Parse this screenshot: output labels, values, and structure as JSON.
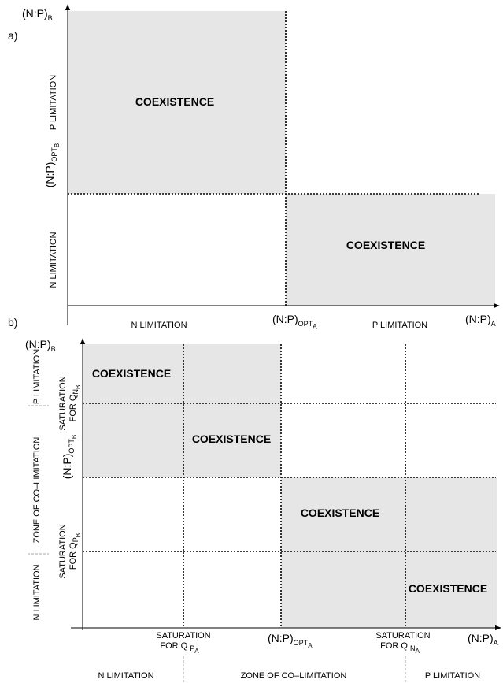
{
  "panel_a": {
    "label": "a)",
    "y_axis": {
      "main": "(N:P)",
      "sub": "B"
    },
    "y_threshold": {
      "main": "(N:P)",
      "sub": "OPT",
      "subsub": "B"
    },
    "y_regions": [
      "P LIMITATION",
      "N LIMITATION"
    ],
    "x_axis": {
      "main": "(N:P)",
      "sub": "A"
    },
    "x_threshold": {
      "main": "(N:P)",
      "sub": "OPT",
      "subsub": "A"
    },
    "x_regions": [
      "N LIMITATION",
      "P LIMITATION"
    ],
    "regions": [
      "COEXISTENCE",
      "COEXISTENCE"
    ]
  },
  "panel_b": {
    "label": "b)",
    "y_axis": {
      "main": "(N:P)",
      "sub": "B"
    },
    "y_threshold": {
      "main": "(N:P)",
      "sub": "OPT",
      "subsub": "B"
    },
    "y_saturation": [
      {
        "line1": "SATURATION",
        "line2": "FOR Q",
        "sub": "N",
        "subsub": "B"
      },
      {
        "line1": "SATURATION",
        "line2": "FOR Q",
        "sub": "P",
        "subsub": "B"
      }
    ],
    "y_zones": [
      "P LIMITATION",
      "ZONE OF CO–LIMITATION",
      "N LIMITATION"
    ],
    "x_axis": {
      "main": "(N:P)",
      "sub": "A"
    },
    "x_threshold": {
      "main": "(N:P)",
      "sub": "OPT",
      "subsub": "A"
    },
    "x_saturation": [
      {
        "line1": "SATURATION",
        "line2": "FOR Q",
        "sub": "P",
        "subsub": "A"
      },
      {
        "line1": "SATURATION",
        "line2": "FOR Q",
        "sub": "N",
        "subsub": "A"
      }
    ],
    "x_zones": [
      "N LIMITATION",
      "ZONE OF CO–LIMITATION",
      "P LIMITATION"
    ],
    "regions": [
      "COEXISTENCE",
      "COEXISTENCE",
      "COEXISTENCE",
      "COEXISTENCE"
    ]
  }
}
